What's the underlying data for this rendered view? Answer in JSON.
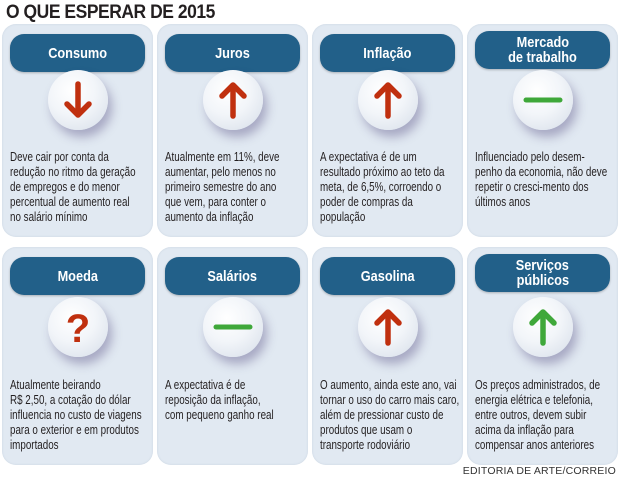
{
  "title": "O QUE ESPERAR DE 2015",
  "credit": "EDITORIA DE ARTE/CORREIO",
  "colors": {
    "card_bg": "#e1e9f2",
    "header_bg": "#226089",
    "down_up_red": "#c0300f",
    "neutral_green": "#3fa83a"
  },
  "cards": [
    {
      "title_lines": [
        "Consumo"
      ],
      "icon": "arrow-down-icon",
      "icon_color": "#c0300f",
      "lines": [
        "Deve cair por conta da",
        "redução no ritmo da geração",
        "de empregos e do menor",
        "percentual de aumento real",
        "no salário mínimo"
      ]
    },
    {
      "title_lines": [
        "Juros"
      ],
      "icon": "arrow-up-icon",
      "icon_color": "#c0300f",
      "lines": [
        "Atualmente em 11%, deve",
        "aumentar, pelo menos no",
        "primeiro semestre do ano",
        "que vem, para conter o",
        "aumento da inflação"
      ]
    },
    {
      "title_lines": [
        "Inflação"
      ],
      "icon": "arrow-up-icon",
      "icon_color": "#c0300f",
      "lines": [
        "A expectativa é de um",
        "resultado próximo ao teto da",
        "meta, de 6,5%, corroendo o",
        "poder de compras da",
        "população"
      ]
    },
    {
      "title_lines": [
        "Mercado",
        "de trabalho"
      ],
      "icon": "dash-icon",
      "icon_color": "#3fa83a",
      "lines": [
        "Influenciado pelo desem-",
        "penho da economia, não deve",
        "repetir o cresci-mento dos",
        "últimos anos"
      ]
    },
    {
      "title_lines": [
        "Moeda"
      ],
      "icon": "question-icon",
      "icon_color": "#c0300f",
      "lines": [
        "Atualmente beirando",
        "R$ 2,50, a cotação do dólar",
        "influencia no custo de viagens",
        "para o exterior e em produtos",
        "importados"
      ]
    },
    {
      "title_lines": [
        "Salários"
      ],
      "icon": "dash-icon",
      "icon_color": "#3fa83a",
      "lines": [
        "A expectativa é de",
        "reposição da inflação,",
        "com pequeno ganho real"
      ]
    },
    {
      "title_lines": [
        "Gasolina"
      ],
      "icon": "arrow-up-icon",
      "icon_color": "#c0300f",
      "lines": [
        "O aumento, ainda este ano, vai",
        "tornar o uso do carro mais caro,",
        "além de pressionar custo de",
        "produtos que usam o",
        "transporte rodoviário"
      ]
    },
    {
      "title_lines": [
        "Serviços",
        "públicos"
      ],
      "icon": "arrow-up-icon",
      "icon_color": "#3fa83a",
      "lines": [
        "Os preços administrados, de",
        "energia elétrica e telefonia,",
        "entre outros, devem subir",
        "acima da inflação para",
        "compensar anos anteriores"
      ]
    }
  ]
}
